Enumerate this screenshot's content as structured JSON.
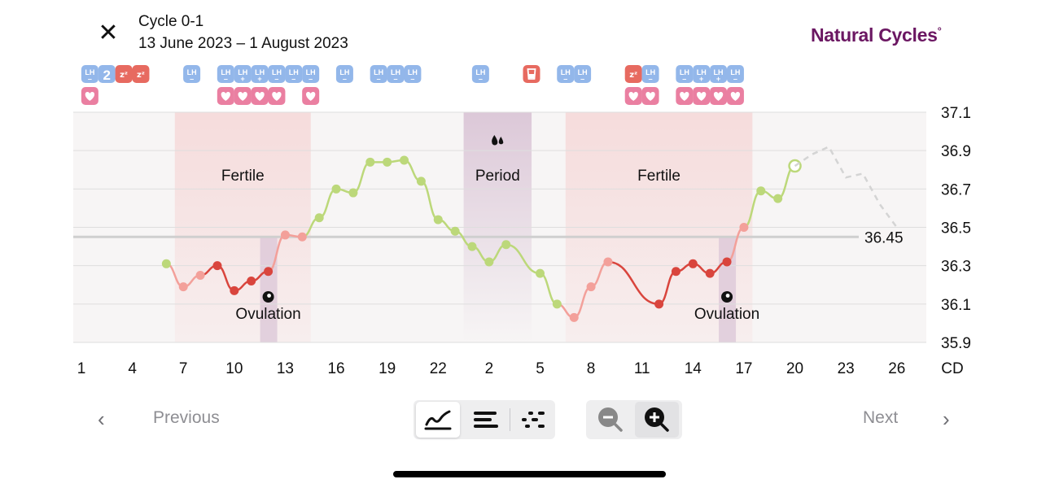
{
  "header": {
    "close_label": "✕",
    "cycle_title": "Cycle 0-1",
    "date_range": "13 June 2023 – 1 August 2023",
    "brand": "Natural Cycles",
    "brand_mark": "°"
  },
  "colors": {
    "green": "#bcd87a",
    "red_dark": "#d9453d",
    "red_light": "#f3a09a",
    "lh_badge": "#93b7ea",
    "heart_badge": "#ea7fa1",
    "sleep_badge": "#e76a60",
    "fertile_band": "#f6dcdc",
    "period_band": "#dcc8d8",
    "brand": "#6b1762"
  },
  "chart_data": {
    "type": "line",
    "y_unit_ticks": [
      "37.1",
      "36.9",
      "36.7",
      "36.5",
      "36.3",
      "36.1",
      "35.9"
    ],
    "ylim": [
      35.9,
      37.1
    ],
    "x_tick_labels": [
      "1",
      "4",
      "7",
      "10",
      "13",
      "16",
      "19",
      "22",
      "2",
      "5",
      "8",
      "11",
      "14",
      "17",
      "20",
      "23",
      "26",
      "CD"
    ],
    "cover_line": 36.45,
    "cover_line_label": "36.45",
    "bands": [
      {
        "type": "fertile",
        "label": "Fertile",
        "from_index": 6,
        "to_index": 13
      },
      {
        "type": "period",
        "label": "Period",
        "from_index": 23,
        "to_index": 26
      },
      {
        "type": "fertile",
        "label": "Fertile",
        "from_index": 29,
        "to_index": 39
      }
    ],
    "ovulation": [
      {
        "label": "Ovulation",
        "index": 11
      },
      {
        "label": "Ovulation",
        "index": 38
      }
    ],
    "series": [
      {
        "values": [
          {
            "i": 5,
            "v": 36.31,
            "c": "green"
          },
          {
            "i": 6,
            "v": 36.19,
            "c": "red_light"
          },
          {
            "i": 7,
            "v": 36.25,
            "c": "red_light"
          },
          {
            "i": 8,
            "v": 36.3,
            "c": "red_dark"
          },
          {
            "i": 9,
            "v": 36.17,
            "c": "red_dark"
          },
          {
            "i": 10,
            "v": 36.22,
            "c": "red_dark"
          },
          {
            "i": 11,
            "v": 36.27,
            "c": "red_dark"
          },
          {
            "i": 12,
            "v": 36.46,
            "c": "red_light"
          },
          {
            "i": 13,
            "v": 36.45,
            "c": "red_light"
          },
          {
            "i": 14,
            "v": 36.55,
            "c": "green"
          },
          {
            "i": 15,
            "v": 36.7,
            "c": "green"
          },
          {
            "i": 16,
            "v": 36.68,
            "c": "green"
          },
          {
            "i": 17,
            "v": 36.84,
            "c": "green"
          },
          {
            "i": 18,
            "v": 36.84,
            "c": "green"
          },
          {
            "i": 19,
            "v": 36.85,
            "c": "green"
          },
          {
            "i": 20,
            "v": 36.74,
            "c": "green"
          },
          {
            "i": 21,
            "v": 36.54,
            "c": "green"
          },
          {
            "i": 22,
            "v": 36.48,
            "c": "green"
          },
          {
            "i": 23,
            "v": 36.4,
            "c": "green"
          },
          {
            "i": 24,
            "v": 36.32,
            "c": "green"
          },
          {
            "i": 25,
            "v": 36.41,
            "c": "green"
          },
          {
            "i": 27,
            "v": 36.26,
            "c": "green"
          },
          {
            "i": 28,
            "v": 36.1,
            "c": "green"
          },
          {
            "i": 29,
            "v": 36.03,
            "c": "red_light"
          },
          {
            "i": 30,
            "v": 36.19,
            "c": "red_light"
          },
          {
            "i": 31,
            "v": 36.32,
            "c": "red_light"
          },
          {
            "i": 34,
            "v": 36.1,
            "c": "red_dark"
          },
          {
            "i": 35,
            "v": 36.27,
            "c": "red_dark"
          },
          {
            "i": 36,
            "v": 36.31,
            "c": "red_dark"
          },
          {
            "i": 37,
            "v": 36.26,
            "c": "red_dark"
          },
          {
            "i": 38,
            "v": 36.32,
            "c": "red_dark"
          },
          {
            "i": 39,
            "v": 36.5,
            "c": "red_light"
          },
          {
            "i": 40,
            "v": 36.69,
            "c": "green"
          },
          {
            "i": 41,
            "v": 36.65,
            "c": "green"
          },
          {
            "i": 42,
            "v": 36.82,
            "c": "green",
            "today": true
          }
        ]
      },
      {
        "dashed": true,
        "values": [
          {
            "i": 42,
            "v": 36.82
          },
          {
            "i": 43,
            "v": 36.88
          },
          {
            "i": 44,
            "v": 36.92
          },
          {
            "i": 45,
            "v": 36.76
          },
          {
            "i": 46,
            "v": 36.78
          },
          {
            "i": 47,
            "v": 36.62
          },
          {
            "i": 48,
            "v": 36.5
          }
        ]
      }
    ]
  },
  "badges": {
    "row1": [
      {
        "i": 0,
        "t": "lh",
        "s": "–"
      },
      {
        "i": 1,
        "t": "num",
        "s": "2"
      },
      {
        "i": 2,
        "t": "sleep"
      },
      {
        "i": 3,
        "t": "sleep"
      },
      {
        "i": 6,
        "t": "lh",
        "s": "–"
      },
      {
        "i": 8,
        "t": "lh",
        "s": "–"
      },
      {
        "i": 9,
        "t": "lh",
        "s": "+"
      },
      {
        "i": 10,
        "t": "lh",
        "s": "+"
      },
      {
        "i": 11,
        "t": "lh",
        "s": "–"
      },
      {
        "i": 12,
        "t": "lh",
        "s": "–"
      },
      {
        "i": 13,
        "t": "lh",
        "s": "–"
      },
      {
        "i": 15,
        "t": "lh",
        "s": "–"
      },
      {
        "i": 17,
        "t": "lh",
        "s": "–"
      },
      {
        "i": 18,
        "t": "lh",
        "s": "–"
      },
      {
        "i": 19,
        "t": "lh",
        "s": "–"
      },
      {
        "i": 23,
        "t": "lh",
        "s": "–"
      },
      {
        "i": 26,
        "t": "cup"
      },
      {
        "i": 28,
        "t": "lh",
        "s": "–"
      },
      {
        "i": 29,
        "t": "lh",
        "s": "–"
      },
      {
        "i": 32,
        "t": "sleep"
      },
      {
        "i": 33,
        "t": "lh",
        "s": "–"
      },
      {
        "i": 35,
        "t": "lh",
        "s": "–"
      },
      {
        "i": 36,
        "t": "lh",
        "s": "+"
      },
      {
        "i": 37,
        "t": "lh",
        "s": "+"
      },
      {
        "i": 38,
        "t": "lh",
        "s": "–"
      }
    ],
    "row2": [
      0,
      8,
      9,
      10,
      11,
      13,
      32,
      33,
      35,
      36,
      37,
      38
    ],
    "lh_text": "LH",
    "sleep_text": "zᶻ"
  },
  "footer": {
    "prev_label": "Previous",
    "next_label": "Next",
    "prev_chevron": "‹",
    "next_chevron": "›",
    "view_modes": [
      "graph-view-icon",
      "list-view-icon",
      "dots-view-icon"
    ],
    "active_view": 0,
    "zoom_out": "zoom-out-icon",
    "zoom_in": "zoom-in-icon"
  }
}
